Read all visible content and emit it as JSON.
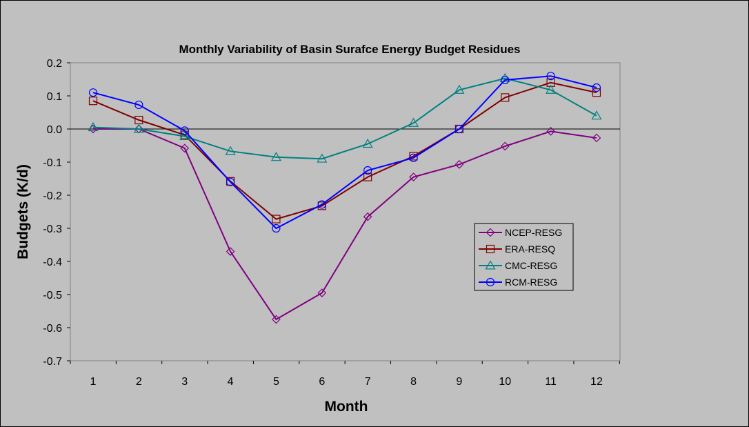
{
  "chart_data": {
    "type": "line",
    "title": "Monthly Variability of Basin Surafce Energy Budget Residues",
    "xlabel": "Month",
    "ylabel": "Budgets (K/d)",
    "x": [
      1,
      2,
      3,
      4,
      5,
      6,
      7,
      8,
      9,
      10,
      11,
      12
    ],
    "ylim": [
      -0.7,
      0.2
    ],
    "yticks": [
      0.2,
      0.1,
      0.0,
      -0.1,
      -0.2,
      -0.3,
      -0.4,
      -0.5,
      -0.6,
      -0.7
    ],
    "ytick_labels": [
      "0.2",
      "0.1",
      "0.0",
      "-0.1",
      "-0.2",
      "-0.3",
      "-0.4",
      "-0.5",
      "-0.6",
      "-0.7"
    ],
    "xtick_labels": [
      "1",
      "2",
      "3",
      "4",
      "5",
      "6",
      "7",
      "8",
      "9",
      "10",
      "11",
      "12"
    ],
    "grid": false,
    "legend_position": "right",
    "series": [
      {
        "name": "NCEP-RESG",
        "color": "#800080",
        "marker": "diamond",
        "values": [
          0.0,
          0.0,
          -0.058,
          -0.37,
          -0.575,
          -0.495,
          -0.265,
          -0.145,
          -0.107,
          -0.052,
          -0.007,
          -0.027
        ]
      },
      {
        "name": "ERA-RESQ",
        "color": "#800000",
        "marker": "square",
        "values": [
          0.085,
          0.027,
          -0.018,
          -0.158,
          -0.272,
          -0.232,
          -0.145,
          -0.082,
          0.0,
          0.095,
          0.14,
          0.11
        ]
      },
      {
        "name": "CMC-RESG",
        "color": "#008080",
        "marker": "triangle",
        "values": [
          0.005,
          0.0,
          -0.022,
          -0.067,
          -0.085,
          -0.09,
          -0.045,
          0.018,
          0.118,
          0.153,
          0.118,
          0.04
        ]
      },
      {
        "name": "RCM-RESG",
        "color": "#0000ff",
        "marker": "circle",
        "values": [
          0.11,
          0.073,
          -0.005,
          -0.16,
          -0.3,
          -0.228,
          -0.125,
          -0.087,
          0.0,
          0.148,
          0.16,
          0.125
        ]
      }
    ]
  }
}
